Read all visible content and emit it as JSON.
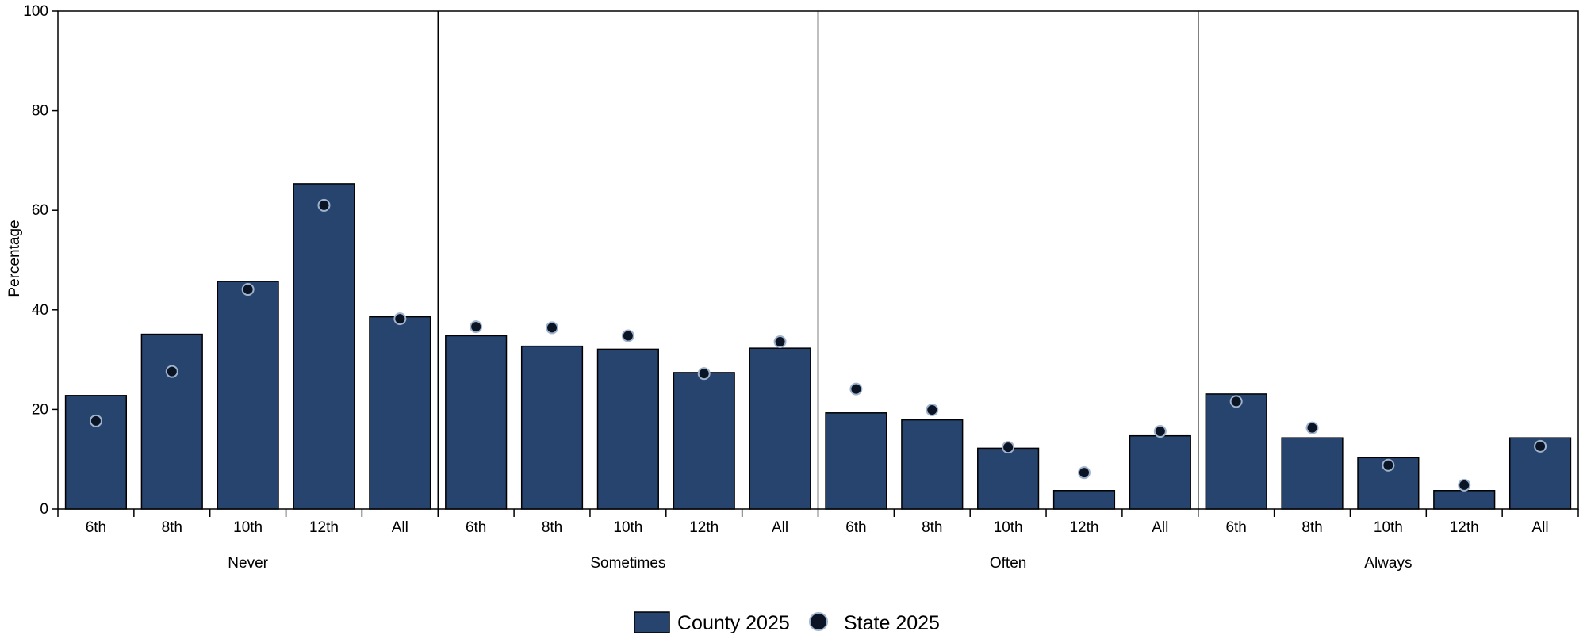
{
  "chart_data": {
    "type": "bar",
    "ylabel": "Percentage",
    "ylim": [
      0,
      100
    ],
    "yticks": [
      0,
      20,
      40,
      60,
      80,
      100
    ],
    "grid": false,
    "legend_position": "bottom-center",
    "groups": [
      "Never",
      "Sometimes",
      "Often",
      "Always"
    ],
    "categories": [
      "6th",
      "8th",
      "10th",
      "12th",
      "All"
    ],
    "series": [
      {
        "name": "County 2025",
        "mark": "bar",
        "color": "#26446e",
        "values": [
          [
            22.8,
            35.1,
            45.7,
            65.3,
            38.6
          ],
          [
            34.8,
            32.7,
            32.1,
            27.4,
            32.3
          ],
          [
            19.3,
            17.9,
            12.2,
            3.7,
            14.7
          ],
          [
            23.1,
            14.3,
            10.3,
            3.7,
            14.3
          ]
        ]
      },
      {
        "name": "State 2025",
        "mark": "dot",
        "color": "#0b1424",
        "values": [
          [
            17.7,
            27.6,
            44.1,
            61.0,
            38.2
          ],
          [
            36.6,
            36.4,
            34.8,
            27.2,
            33.6
          ],
          [
            24.1,
            19.9,
            12.4,
            7.3,
            15.6
          ],
          [
            21.6,
            16.3,
            8.8,
            4.8,
            12.6
          ]
        ]
      }
    ]
  }
}
